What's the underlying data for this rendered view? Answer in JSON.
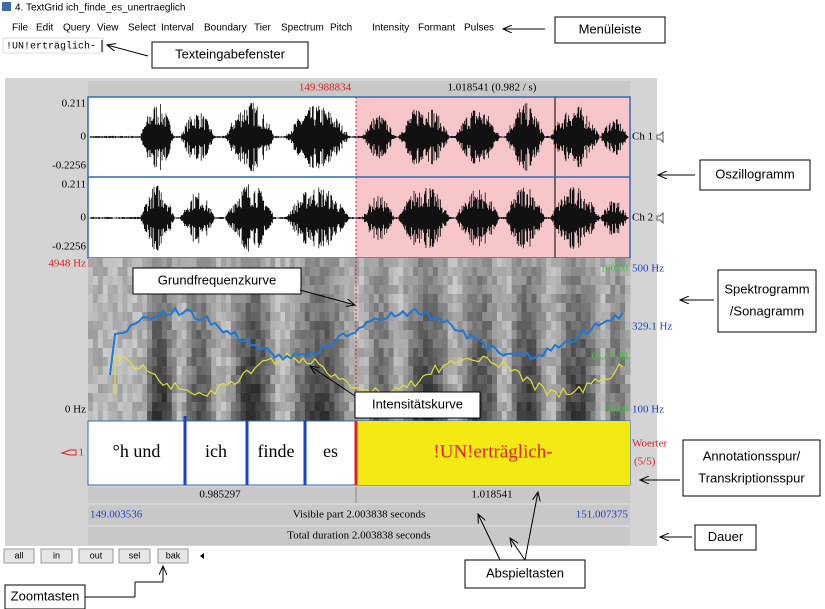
{
  "window": {
    "title": "4. TextGrid ich_finde_es_unertraeglich",
    "menu": [
      "File",
      "Edit",
      "Query",
      "View",
      "Select",
      "Interval",
      "Boundary",
      "Tier",
      "Spectrum",
      "Pitch",
      "Intensity",
      "Formant",
      "Pulses"
    ],
    "text_input": "!UN!erträglich-"
  },
  "editor": {
    "cursor_time": "149.988834",
    "selection_info": "1.018541 (0.982 / s)",
    "channels": [
      {
        "max": "0.211",
        "zero": "0",
        "min": "-0.2256",
        "label": "Ch 1"
      },
      {
        "max": "0.211",
        "zero": "0",
        "min": "-0.2256",
        "label": "Ch 2"
      }
    ],
    "spectrogram": {
      "max_freq": "4948 Hz",
      "min_freq": "0 Hz",
      "pitch_max": "500 Hz",
      "pitch_value": "329.1 Hz",
      "pitch_min": "100 Hz",
      "intensity_labels": [
        "100.00",
        "65.47 dB",
        "50.00"
      ]
    },
    "tier": {
      "number": "1",
      "name": "Woerter",
      "count": "(5/5)",
      "intervals": [
        "°h und",
        "ich",
        "finde",
        "es",
        "!UN!erträglich-"
      ]
    },
    "durations": {
      "left": "0.985297",
      "right": "1.018541"
    },
    "visible": {
      "start": "149.003536",
      "label": "Visible part 2.003838 seconds",
      "end": "151.007375"
    },
    "total": "Total duration 2.003838 seconds",
    "buttons": [
      "all",
      "in",
      "out",
      "sel",
      "bak"
    ]
  },
  "callouts": [
    "Menüleiste",
    "Texteingabefenster",
    "Oszillogramm",
    "Spektrogramm",
    "/Sonagramm",
    "Grundfrequenzkurve",
    "Intensitätskurve",
    "Annotationsspur/",
    "Transkriptionsspur",
    "Dauer",
    "Abspieltasten",
    "Zoomtasten"
  ]
}
